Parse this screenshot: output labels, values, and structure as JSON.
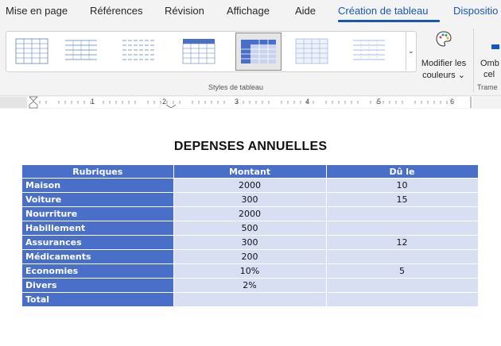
{
  "ribbon_tabs": {
    "items": [
      "Mise en page",
      "Références",
      "Révision",
      "Affichage",
      "Aide",
      "Création de tableau",
      "Dispositio"
    ]
  },
  "ribbon": {
    "styles_group_label": "Styles de tableau",
    "modify_colors_label_1": "Modifier les",
    "modify_colors_label_2": "couleurs ⌄",
    "shading_label_1": "Omb",
    "shading_label_2": "cel",
    "borders_group_label": "Trame",
    "palette_icon": "palette-icon",
    "accent_color": "#1a56b5"
  },
  "ruler": {
    "numbers": [
      "1",
      "2",
      "3",
      "4",
      "5",
      "6"
    ]
  },
  "document": {
    "title": "DEPENSES ANNUELLES",
    "table": {
      "headers": [
        "Rubriques",
        "Montant",
        "Dû le"
      ],
      "rows": [
        [
          "Maison",
          "2000",
          "10"
        ],
        [
          "Voiture",
          "300",
          "15"
        ],
        [
          "Nourriture",
          "2000",
          ""
        ],
        [
          "Habillement",
          "500",
          ""
        ],
        [
          "Assurances",
          "300",
          "12"
        ],
        [
          "Médicaments",
          "200",
          ""
        ],
        [
          "Economies",
          "10%",
          "5"
        ],
        [
          "Divers",
          "2%",
          ""
        ],
        [
          "Total",
          "",
          ""
        ]
      ],
      "header_color": "#4a6fc8",
      "cell_color": "#d8dff3"
    }
  }
}
